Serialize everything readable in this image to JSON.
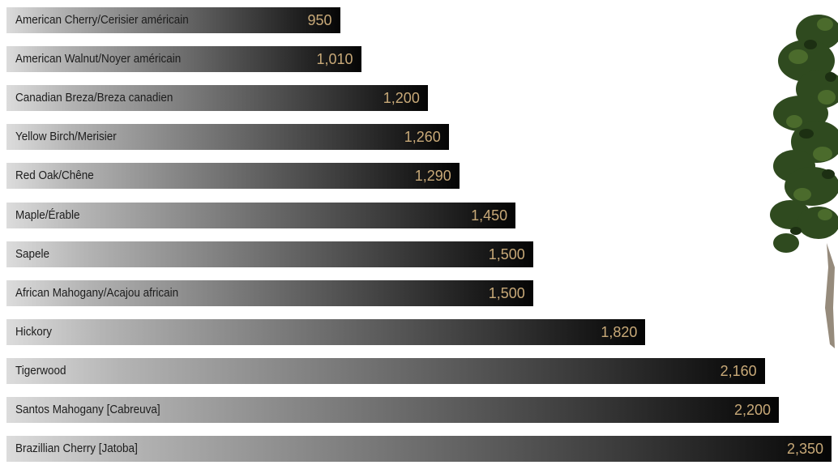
{
  "chart_data": {
    "type": "bar",
    "orientation": "horizontal",
    "title": "",
    "xlabel": "",
    "ylabel": "",
    "xlim": [
      0,
      2350
    ],
    "grid": false,
    "categories": [
      "American Cherry/Cerisier américain",
      "American Walnut/Noyer américain",
      "Canadian Breza/Breza canadien",
      "Yellow Birch/Merisier",
      "Red Oak/Chêne",
      "Maple/Érable",
      "Sapele",
      "African Mahogany/Acajou africain",
      "Hickory",
      "Tigerwood",
      "Santos Mahogany [Cabreuva]",
      "Brazillian Cherry [Jatoba]"
    ],
    "values": [
      950,
      1010,
      1200,
      1260,
      1290,
      1450,
      1500,
      1500,
      1820,
      2160,
      2200,
      2350
    ],
    "value_labels": [
      "950",
      "1,010",
      "1,200",
      "1,260",
      "1,290",
      "1,450",
      "1,500",
      "1,500",
      "1,820",
      "2,160",
      "2,200",
      "2,350"
    ],
    "colors": {
      "bar_start": "#dcdcdc",
      "bar_end": "#050505",
      "value_text": "#c8a978",
      "label_text": "#1c1c1c",
      "foliage": "#2f4a1f"
    }
  },
  "decoration": {
    "icon": "tree-icon"
  }
}
